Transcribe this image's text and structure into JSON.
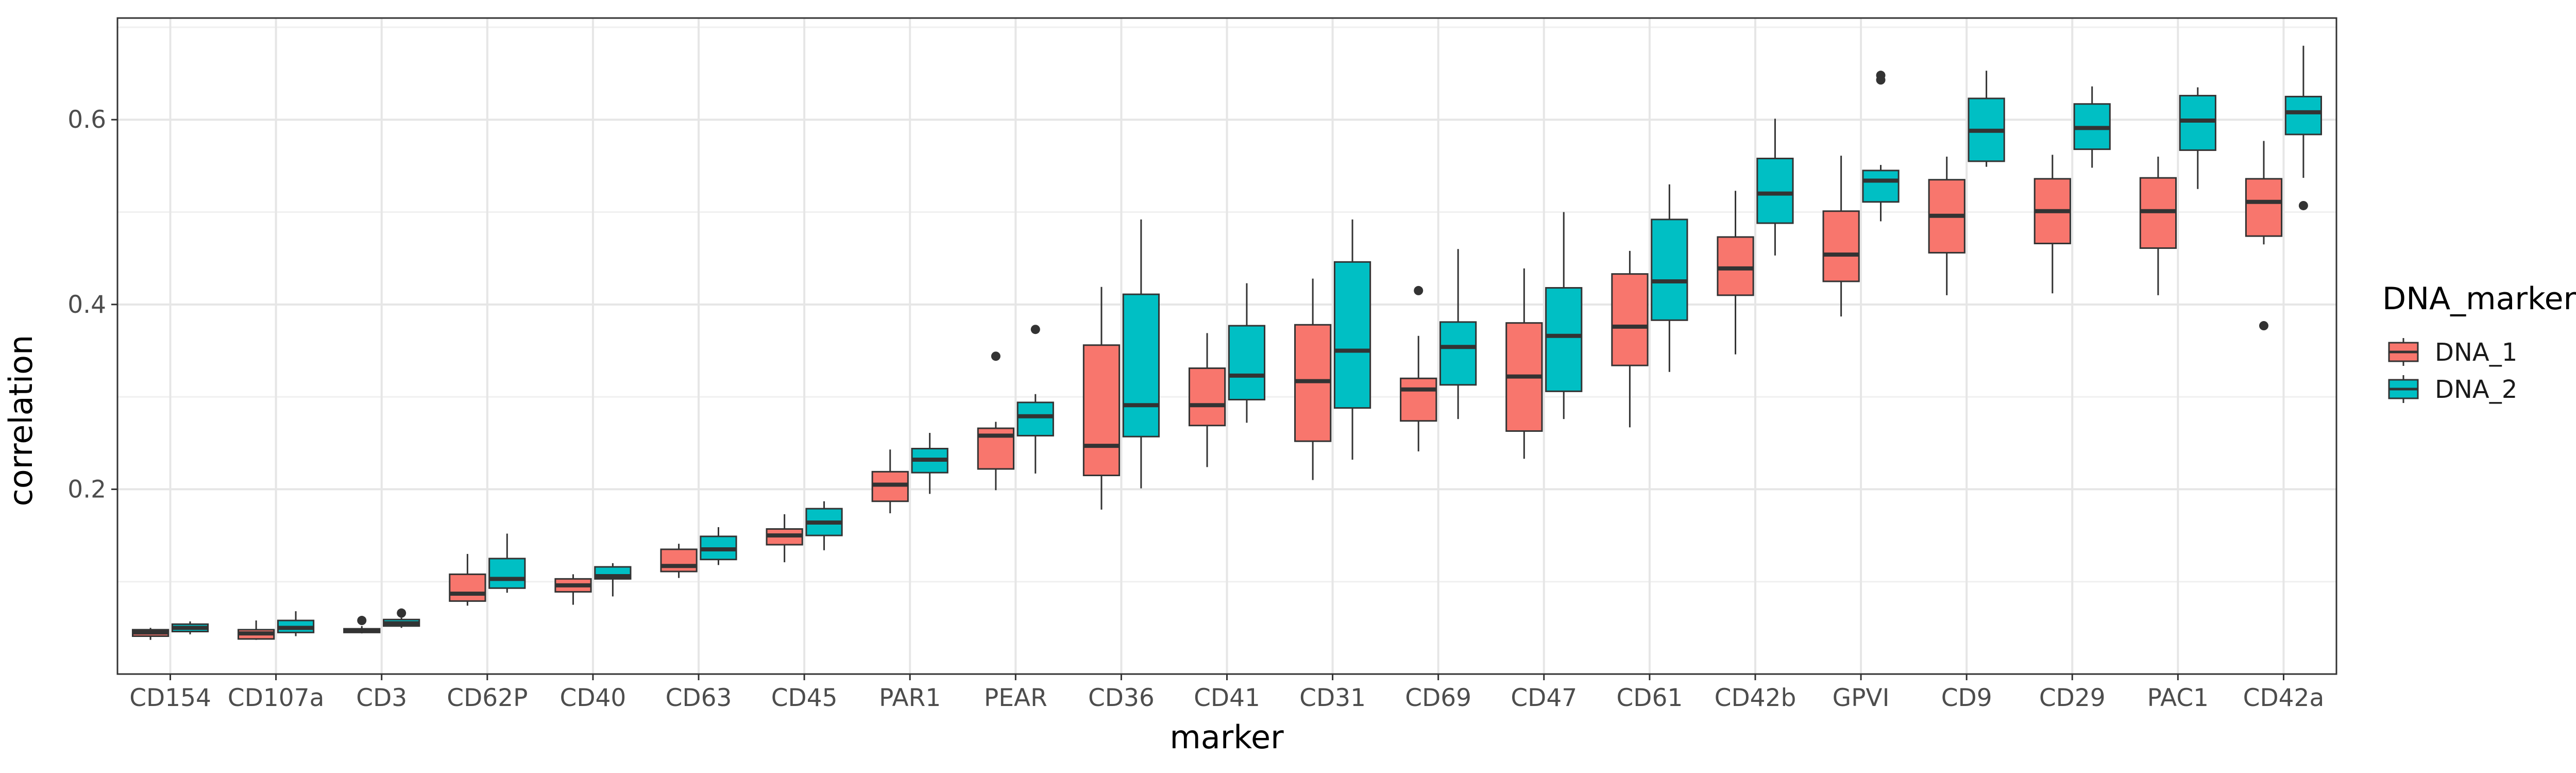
{
  "chart_data": {
    "type": "boxplot",
    "xlabel": "marker",
    "ylabel": "correlation",
    "categories": [
      "CD154",
      "CD107a",
      "CD3",
      "CD62P",
      "CD40",
      "CD63",
      "CD45",
      "PAR1",
      "PEAR",
      "CD36",
      "CD41",
      "CD31",
      "CD69",
      "CD47",
      "CD61",
      "CD42b",
      "GPVI",
      "CD9",
      "CD29",
      "PAC1",
      "CD42a"
    ],
    "ylim": [
      0.0,
      0.71
    ],
    "yticks": [
      0.2,
      0.4,
      0.6
    ],
    "ytick_labels": [
      "0.2",
      "0.4",
      "0.6"
    ],
    "grid": true,
    "legend": {
      "title": "DNA_marker",
      "placement": "right",
      "entries": [
        {
          "name": "DNA_1",
          "color": "#F8766D"
        },
        {
          "name": "DNA_2",
          "color": "#00BFC4"
        }
      ]
    },
    "series": [
      {
        "name": "DNA_1",
        "color": "#F8766D",
        "boxes": [
          {
            "min": 0.037,
            "q1": 0.041,
            "median": 0.045,
            "q3": 0.048,
            "max": 0.05,
            "outliers": []
          },
          {
            "min": 0.037,
            "q1": 0.038,
            "median": 0.044,
            "q3": 0.048,
            "max": 0.058,
            "outliers": []
          },
          {
            "min": 0.044,
            "q1": 0.045,
            "median": 0.047,
            "q3": 0.049,
            "max": 0.052,
            "outliers": [
              0.058
            ]
          },
          {
            "min": 0.074,
            "q1": 0.079,
            "median": 0.087,
            "q3": 0.108,
            "max": 0.13,
            "outliers": []
          },
          {
            "min": 0.075,
            "q1": 0.089,
            "median": 0.096,
            "q3": 0.103,
            "max": 0.108,
            "outliers": []
          },
          {
            "min": 0.104,
            "q1": 0.111,
            "median": 0.117,
            "q3": 0.135,
            "max": 0.141,
            "outliers": []
          },
          {
            "min": 0.121,
            "q1": 0.14,
            "median": 0.15,
            "q3": 0.157,
            "max": 0.173,
            "outliers": []
          },
          {
            "min": 0.174,
            "q1": 0.187,
            "median": 0.205,
            "q3": 0.219,
            "max": 0.243,
            "outliers": []
          },
          {
            "min": 0.199,
            "q1": 0.222,
            "median": 0.258,
            "q3": 0.266,
            "max": 0.273,
            "outliers": [
              0.344
            ]
          },
          {
            "min": 0.178,
            "q1": 0.215,
            "median": 0.247,
            "q3": 0.356,
            "max": 0.419,
            "outliers": []
          },
          {
            "min": 0.224,
            "q1": 0.269,
            "median": 0.291,
            "q3": 0.331,
            "max": 0.369,
            "outliers": []
          },
          {
            "min": 0.21,
            "q1": 0.252,
            "median": 0.317,
            "q3": 0.378,
            "max": 0.428,
            "outliers": []
          },
          {
            "min": 0.241,
            "q1": 0.274,
            "median": 0.308,
            "q3": 0.32,
            "max": 0.366,
            "outliers": [
              0.415
            ]
          },
          {
            "min": 0.233,
            "q1": 0.263,
            "median": 0.322,
            "q3": 0.38,
            "max": 0.439,
            "outliers": []
          },
          {
            "min": 0.267,
            "q1": 0.334,
            "median": 0.376,
            "q3": 0.433,
            "max": 0.458,
            "outliers": []
          },
          {
            "min": 0.346,
            "q1": 0.41,
            "median": 0.439,
            "q3": 0.473,
            "max": 0.523,
            "outliers": []
          },
          {
            "min": 0.387,
            "q1": 0.425,
            "median": 0.454,
            "q3": 0.501,
            "max": 0.561,
            "outliers": []
          },
          {
            "min": 0.41,
            "q1": 0.456,
            "median": 0.496,
            "q3": 0.535,
            "max": 0.56,
            "outliers": []
          },
          {
            "min": 0.412,
            "q1": 0.466,
            "median": 0.501,
            "q3": 0.536,
            "max": 0.562,
            "outliers": []
          },
          {
            "min": 0.41,
            "q1": 0.461,
            "median": 0.501,
            "q3": 0.537,
            "max": 0.56,
            "outliers": []
          },
          {
            "min": 0.465,
            "q1": 0.474,
            "median": 0.511,
            "q3": 0.536,
            "max": 0.577,
            "outliers": [
              0.377
            ]
          }
        ]
      },
      {
        "name": "DNA_2",
        "color": "#00BFC4",
        "boxes": [
          {
            "min": 0.043,
            "q1": 0.046,
            "median": 0.05,
            "q3": 0.054,
            "max": 0.057,
            "outliers": []
          },
          {
            "min": 0.041,
            "q1": 0.045,
            "median": 0.05,
            "q3": 0.058,
            "max": 0.068,
            "outliers": []
          },
          {
            "min": 0.05,
            "q1": 0.052,
            "median": 0.055,
            "q3": 0.059,
            "max": 0.061,
            "outliers": [
              0.066
            ]
          },
          {
            "min": 0.088,
            "q1": 0.093,
            "median": 0.103,
            "q3": 0.125,
            "max": 0.152,
            "outliers": []
          },
          {
            "min": 0.084,
            "q1": 0.103,
            "median": 0.106,
            "q3": 0.116,
            "max": 0.12,
            "outliers": []
          },
          {
            "min": 0.118,
            "q1": 0.124,
            "median": 0.135,
            "q3": 0.149,
            "max": 0.159,
            "outliers": []
          },
          {
            "min": 0.134,
            "q1": 0.15,
            "median": 0.164,
            "q3": 0.179,
            "max": 0.187,
            "outliers": []
          },
          {
            "min": 0.195,
            "q1": 0.218,
            "median": 0.232,
            "q3": 0.244,
            "max": 0.261,
            "outliers": []
          },
          {
            "min": 0.217,
            "q1": 0.258,
            "median": 0.279,
            "q3": 0.294,
            "max": 0.303,
            "outliers": [
              0.373
            ]
          },
          {
            "min": 0.201,
            "q1": 0.257,
            "median": 0.291,
            "q3": 0.411,
            "max": 0.492,
            "outliers": []
          },
          {
            "min": 0.272,
            "q1": 0.297,
            "median": 0.323,
            "q3": 0.377,
            "max": 0.423,
            "outliers": []
          },
          {
            "min": 0.232,
            "q1": 0.288,
            "median": 0.35,
            "q3": 0.446,
            "max": 0.492,
            "outliers": []
          },
          {
            "min": 0.276,
            "q1": 0.313,
            "median": 0.354,
            "q3": 0.381,
            "max": 0.46,
            "outliers": []
          },
          {
            "min": 0.276,
            "q1": 0.306,
            "median": 0.366,
            "q3": 0.418,
            "max": 0.5,
            "outliers": []
          },
          {
            "min": 0.327,
            "q1": 0.383,
            "median": 0.425,
            "q3": 0.492,
            "max": 0.53,
            "outliers": []
          },
          {
            "min": 0.453,
            "q1": 0.488,
            "median": 0.52,
            "q3": 0.558,
            "max": 0.601,
            "outliers": []
          },
          {
            "min": 0.49,
            "q1": 0.511,
            "median": 0.534,
            "q3": 0.545,
            "max": 0.551,
            "outliers": [
              0.643,
              0.648
            ]
          },
          {
            "min": 0.549,
            "q1": 0.555,
            "median": 0.588,
            "q3": 0.623,
            "max": 0.653,
            "outliers": []
          },
          {
            "min": 0.548,
            "q1": 0.568,
            "median": 0.591,
            "q3": 0.617,
            "max": 0.636,
            "outliers": []
          },
          {
            "min": 0.525,
            "q1": 0.567,
            "median": 0.599,
            "q3": 0.626,
            "max": 0.635,
            "outliers": []
          },
          {
            "min": 0.537,
            "q1": 0.584,
            "median": 0.608,
            "q3": 0.625,
            "max": 0.68,
            "outliers": [
              0.507
            ]
          }
        ]
      }
    ]
  }
}
